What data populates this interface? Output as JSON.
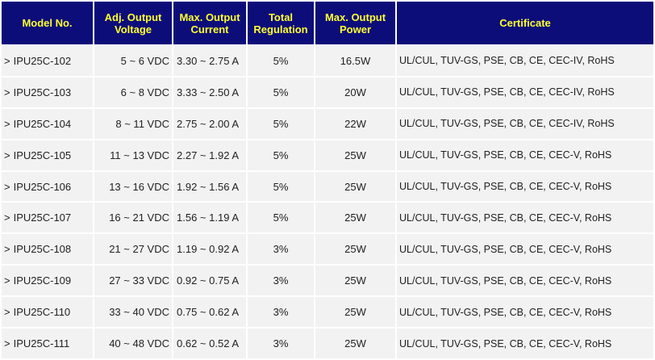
{
  "table": {
    "headers": [
      "Model No.",
      "Adj. Output\nVoltage",
      "Max. Output\nCurrent",
      "Total\nRegulation",
      "Max. Output\nPower",
      "Certificate"
    ],
    "model_prefix": ">",
    "rows": [
      {
        "model": "IPU25C-102",
        "voltage": "5 ~ 6 VDC",
        "current": "3.30 ~ 2.75 A",
        "regulation": "5%",
        "power": "16.5W",
        "certificate": "UL/CUL, TUV-GS, PSE, CB, CE, CEC-IV, RoHS"
      },
      {
        "model": "IPU25C-103",
        "voltage": "6 ~ 8 VDC",
        "current": "3.33 ~ 2.50 A",
        "regulation": "5%",
        "power": "20W",
        "certificate": "UL/CUL, TUV-GS, PSE, CB, CE, CEC-IV, RoHS"
      },
      {
        "model": "IPU25C-104",
        "voltage": "8 ~ 11 VDC",
        "current": "2.75 ~ 2.00 A",
        "regulation": "5%",
        "power": "22W",
        "certificate": "UL/CUL, TUV-GS, PSE, CB, CE, CEC-IV, RoHS"
      },
      {
        "model": "IPU25C-105",
        "voltage": "11 ~ 13 VDC",
        "current": "2.27 ~ 1.92 A",
        "regulation": "5%",
        "power": "25W",
        "certificate": "UL/CUL, TUV-GS, PSE, CB, CE, CEC-V, RoHS"
      },
      {
        "model": "IPU25C-106",
        "voltage": "13 ~ 16 VDC",
        "current": "1.92 ~ 1.56 A",
        "regulation": "5%",
        "power": "25W",
        "certificate": "UL/CUL, TUV-GS, PSE, CB, CE, CEC-V, RoHS"
      },
      {
        "model": "IPU25C-107",
        "voltage": "16 ~ 21 VDC",
        "current": "1.56 ~ 1.19 A",
        "regulation": "5%",
        "power": "25W",
        "certificate": "UL/CUL, TUV-GS, PSE, CB, CE, CEC-V, RoHS"
      },
      {
        "model": "IPU25C-108",
        "voltage": "21 ~ 27 VDC",
        "current": "1.19 ~ 0.92 A",
        "regulation": "3%",
        "power": "25W",
        "certificate": "UL/CUL, TUV-GS, PSE, CB, CE, CEC-V, RoHS"
      },
      {
        "model": "IPU25C-109",
        "voltage": "27 ~ 33 VDC",
        "current": "0.92 ~ 0.75 A",
        "regulation": "3%",
        "power": "25W",
        "certificate": "UL/CUL, TUV-GS, PSE, CB, CE, CEC-V, RoHS"
      },
      {
        "model": "IPU25C-110",
        "voltage": "33 ~ 40 VDC",
        "current": "0.75 ~ 0.62 A",
        "regulation": "3%",
        "power": "25W",
        "certificate": "UL/CUL, TUV-GS, PSE, CB, CE, CEC-V, RoHS"
      },
      {
        "model": "IPU25C-111",
        "voltage": "40 ~ 48 VDC",
        "current": "0.62 ~ 0.52 A",
        "regulation": "3%",
        "power": "25W",
        "certificate": "UL/CUL, TUV-GS, PSE, CB, CE, CEC-V, RoHS"
      }
    ]
  },
  "colors": {
    "header_bg": "#0d0d7a",
    "header_text": "#ffff33",
    "row_bg": "#f2f2f2",
    "row_text": "#222222"
  }
}
